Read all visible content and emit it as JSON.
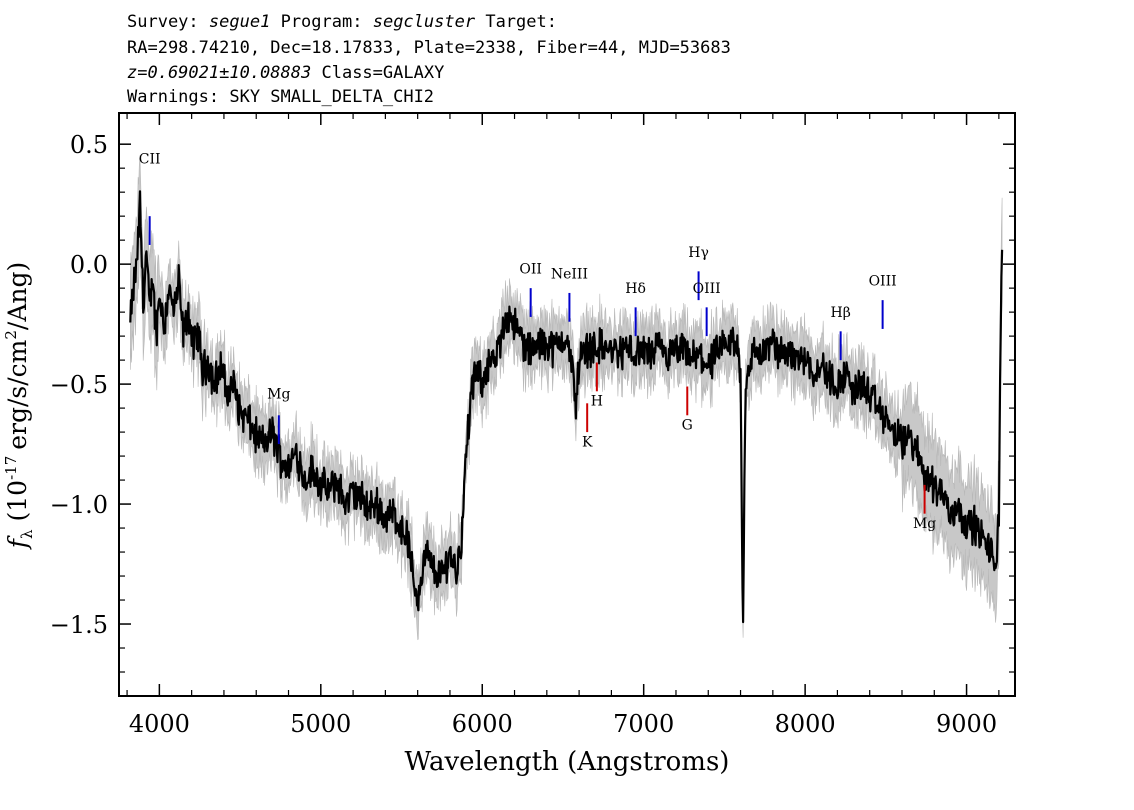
{
  "header": {
    "survey_label": "Survey:",
    "survey": "segue1",
    "program_label": "Program:",
    "program": "segcluster",
    "target_label": "Target:",
    "line2": "RA=298.74210, Dec=18.17833, Plate=2338, Fiber=44, MJD=53683",
    "redshift": "z=0.69021±10.08883",
    "class": "Class=GALAXY",
    "warnings": "Warnings: SKY SMALL_DELTA_CHI2"
  },
  "chart_data": {
    "type": "line",
    "xlabel": "Wavelength (Angstroms)",
    "ylabel_symbol": "f",
    "ylabel_subscript": "λ",
    "ylabel_rest": "(10",
    "ylabel_exponent": "-17",
    "ylabel_units": "erg/s/cm",
    "ylabel_units_exp": "2",
    "ylabel_tail": "/Ang)",
    "xlim": [
      3750,
      9300
    ],
    "ylim": [
      -1.8,
      0.63
    ],
    "x_ticks": [
      4000,
      5000,
      6000,
      7000,
      8000,
      9000
    ],
    "x_tick_labels": [
      "4000",
      "5000",
      "6000",
      "7000",
      "8000",
      "9000"
    ],
    "y_ticks": [
      0.5,
      0.0,
      -0.5,
      -1.0,
      -1.5
    ],
    "y_tick_labels": [
      "0.5",
      "0.0",
      "−0.5",
      "−1.0",
      "−1.5"
    ],
    "grid": false,
    "series": [
      {
        "role": "flux",
        "color": "#000000",
        "x": [
          3820,
          3840,
          3860,
          3880,
          3900,
          3920,
          3940,
          3960,
          3980,
          4000,
          4030,
          4060,
          4090,
          4120,
          4150,
          4180,
          4210,
          4240,
          4270,
          4300,
          4340,
          4380,
          4420,
          4460,
          4500,
          4550,
          4600,
          4650,
          4700,
          4750,
          4800,
          4850,
          4900,
          4950,
          5000,
          5050,
          5100,
          5150,
          5200,
          5250,
          5300,
          5350,
          5400,
          5450,
          5500,
          5540,
          5570,
          5600,
          5650,
          5700,
          5750,
          5800,
          5840,
          5870,
          5900,
          5930,
          5960,
          6000,
          6040,
          6080,
          6120,
          6150,
          6180,
          6210,
          6240,
          6270,
          6300,
          6350,
          6400,
          6450,
          6500,
          6530,
          6560,
          6580,
          6600,
          6650,
          6700,
          6750,
          6800,
          6850,
          6900,
          6950,
          7000,
          7050,
          7100,
          7150,
          7200,
          7250,
          7300,
          7350,
          7400,
          7450,
          7500,
          7550,
          7580,
          7600,
          7615,
          7630,
          7660,
          7700,
          7730,
          7760,
          7800,
          7850,
          7900,
          7950,
          8000,
          8050,
          8100,
          8150,
          8200,
          8250,
          8300,
          8350,
          8400,
          8450,
          8500,
          8550,
          8600,
          8650,
          8700,
          8750,
          8800,
          8850,
          8900,
          8950,
          9000,
          9050,
          9100,
          9150,
          9180,
          9200,
          9210,
          9220
        ],
        "y": [
          -0.25,
          -0.1,
          0.0,
          0.25,
          -0.15,
          0.05,
          -0.2,
          -0.05,
          -0.3,
          -0.12,
          -0.25,
          -0.1,
          -0.2,
          -0.08,
          -0.3,
          -0.2,
          -0.35,
          -0.28,
          -0.45,
          -0.4,
          -0.5,
          -0.42,
          -0.55,
          -0.5,
          -0.62,
          -0.65,
          -0.72,
          -0.75,
          -0.7,
          -0.8,
          -0.85,
          -0.78,
          -0.9,
          -0.86,
          -0.92,
          -0.95,
          -0.9,
          -1.0,
          -0.95,
          -0.98,
          -1.02,
          -1.0,
          -1.06,
          -1.04,
          -1.1,
          -1.15,
          -1.3,
          -1.4,
          -1.2,
          -1.28,
          -1.3,
          -1.2,
          -1.28,
          -1.15,
          -0.8,
          -0.55,
          -0.45,
          -0.5,
          -0.4,
          -0.42,
          -0.3,
          -0.22,
          -0.2,
          -0.28,
          -0.3,
          -0.35,
          -0.36,
          -0.34,
          -0.32,
          -0.36,
          -0.3,
          -0.34,
          -0.45,
          -0.58,
          -0.4,
          -0.35,
          -0.34,
          -0.35,
          -0.36,
          -0.37,
          -0.35,
          -0.38,
          -0.36,
          -0.38,
          -0.35,
          -0.39,
          -0.37,
          -0.36,
          -0.4,
          -0.38,
          -0.42,
          -0.38,
          -0.35,
          -0.32,
          -0.35,
          -0.45,
          -1.55,
          -0.5,
          -0.4,
          -0.36,
          -0.38,
          -0.35,
          -0.33,
          -0.38,
          -0.35,
          -0.4,
          -0.38,
          -0.45,
          -0.42,
          -0.48,
          -0.5,
          -0.46,
          -0.52,
          -0.5,
          -0.55,
          -0.6,
          -0.65,
          -0.7,
          -0.75,
          -0.72,
          -0.8,
          -0.88,
          -0.92,
          -0.95,
          -1.05,
          -1.0,
          -1.1,
          -1.08,
          -1.15,
          -1.2,
          -1.25,
          -1.05,
          -0.3,
          0.02
        ]
      },
      {
        "role": "error envelope",
        "color": "#c0c0c0"
      }
    ],
    "lines": [
      {
        "label": "CII",
        "x": 3940,
        "color": "#0000cc",
        "y_from": 0.08,
        "y_to": 0.2,
        "label_y": 0.42
      },
      {
        "label": "Mg",
        "x": 4740,
        "color": "#0000cc",
        "y_from": -0.75,
        "y_to": -0.63,
        "label_y": -0.56
      },
      {
        "label": "OII",
        "x": 6300,
        "color": "#0000cc",
        "y_from": -0.22,
        "y_to": -0.1,
        "label_y": -0.04
      },
      {
        "label": "NeIII",
        "x": 6540,
        "color": "#0000cc",
        "y_from": -0.24,
        "y_to": -0.12,
        "label_y": -0.06
      },
      {
        "label": "Hδ",
        "x": 6950,
        "color": "#0000cc",
        "y_from": -0.3,
        "y_to": -0.18,
        "label_y": -0.12
      },
      {
        "label": "Hγ",
        "x": 7340,
        "color": "#0000cc",
        "y_from": -0.15,
        "y_to": -0.03,
        "label_y": 0.03
      },
      {
        "label": "OIII",
        "x": 7390,
        "color": "#0000cc",
        "y_from": -0.3,
        "y_to": -0.18,
        "label_y": -0.12
      },
      {
        "label": "Hβ",
        "x": 8220,
        "color": "#0000cc",
        "y_from": -0.4,
        "y_to": -0.28,
        "label_y": -0.22
      },
      {
        "label": "OIII",
        "x": 8480,
        "color": "#0000cc",
        "y_from": -0.27,
        "y_to": -0.15,
        "label_y": -0.09
      },
      {
        "label": "K",
        "x": 6650,
        "color": "#cc0000",
        "y_from": -0.58,
        "y_to": -0.7,
        "label_y": -0.76
      },
      {
        "label": "H",
        "x": 6710,
        "color": "#cc0000",
        "y_from": -0.41,
        "y_to": -0.53,
        "label_y": -0.59
      },
      {
        "label": "G",
        "x": 7270,
        "color": "#cc0000",
        "y_from": -0.51,
        "y_to": -0.63,
        "label_y": -0.69
      },
      {
        "label": "Mg",
        "x": 8740,
        "color": "#cc0000",
        "y_from": -0.92,
        "y_to": -1.04,
        "label_y": -1.1
      }
    ]
  }
}
